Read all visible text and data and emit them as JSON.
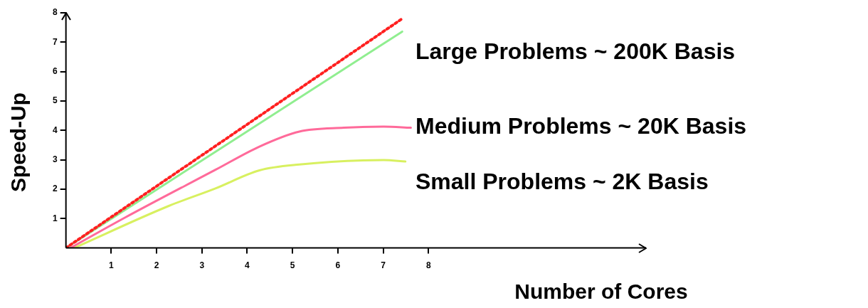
{
  "chart_data": {
    "type": "line",
    "xlabel": "Number of Cores",
    "ylabel": "Speed-Up",
    "xlim": [
      0,
      12.8
    ],
    "ylim": [
      0,
      8
    ],
    "xticks": [
      1,
      2,
      3,
      4,
      5,
      6,
      7,
      8
    ],
    "yticks": [
      1,
      2,
      3,
      4,
      5,
      6,
      7,
      8
    ],
    "grid": false,
    "legend": false,
    "marker": "none",
    "series": [
      {
        "color": "#ff2020",
        "line_style": "dotted",
        "x": [
          0,
          7.42
        ],
        "values": [
          0,
          7.8
        ]
      },
      {
        "name": "Large Problems ~ 200K Basis",
        "color": "#90ee90",
        "line_style": "solid",
        "x": [
          0,
          7.42
        ],
        "values": [
          0,
          7.36
        ]
      },
      {
        "name": "Medium Problems ~ 20K Basis",
        "color": "#ff6a9a",
        "line_style": "solid",
        "x": [
          0.1,
          1.3,
          3.3,
          4.27,
          5.15,
          6.13,
          7.01,
          7.61
        ],
        "values": [
          0,
          1.03,
          2.66,
          3.45,
          3.96,
          4.09,
          4.13,
          4.09
        ]
      },
      {
        "name": "Small Problems ~ 2K Basis",
        "color": "#d8f060",
        "line_style": "solid",
        "x": [
          0.18,
          2.27,
          3.29,
          4.27,
          5.15,
          7.01,
          7.49
        ],
        "values": [
          0,
          1.43,
          2.02,
          2.64,
          2.84,
          2.99,
          2.94
        ]
      }
    ]
  }
}
